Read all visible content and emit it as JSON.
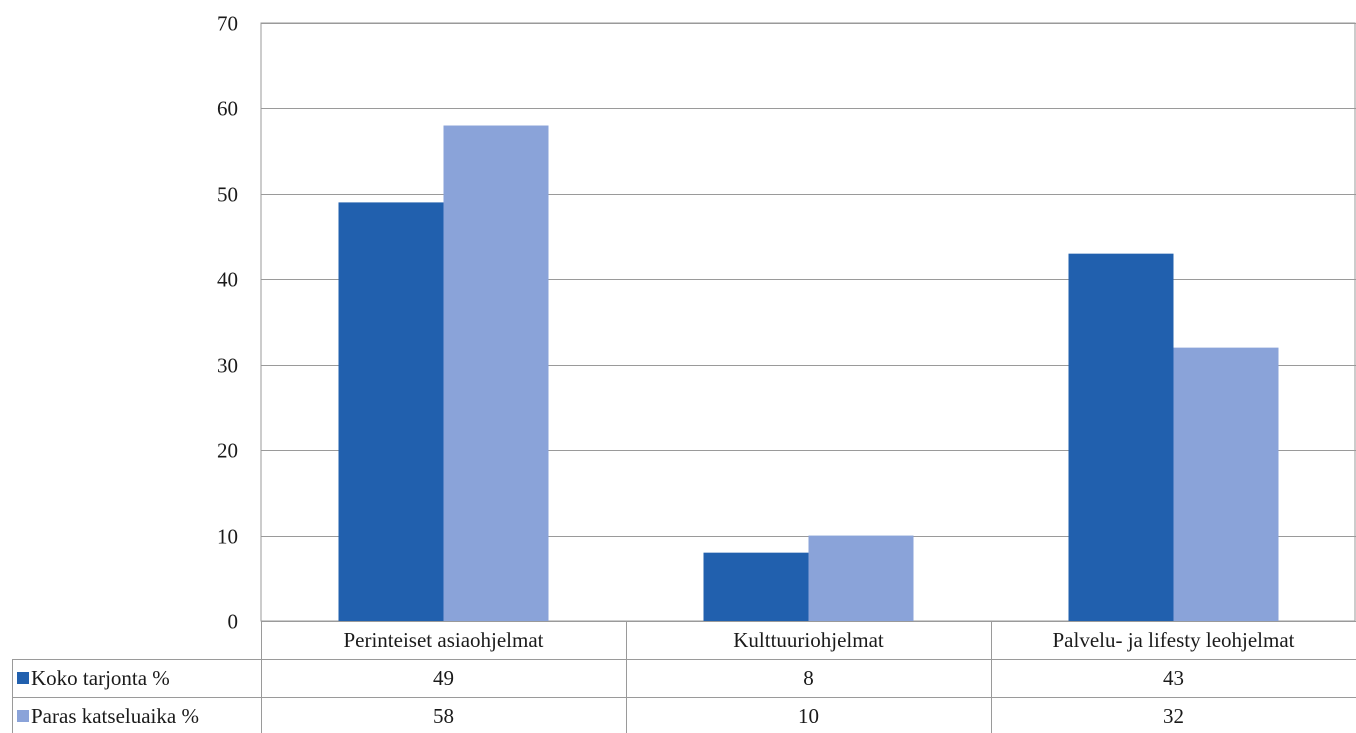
{
  "chart_data": {
    "type": "bar",
    "title": "",
    "xlabel": "",
    "ylabel": "",
    "categories": [
      "Perinteiset asiaohjelmat",
      "Kulttuuriohjelmat",
      "Palvelu- ja lifesty leohjelmat"
    ],
    "series": [
      {
        "name": "Koko tarjonta %",
        "values": [
          49,
          8,
          43
        ],
        "display_values": [
          "49",
          "8",
          "43"
        ],
        "color": "#2160ae"
      },
      {
        "name": "Paras katseluaika %",
        "values": [
          58,
          10,
          32
        ],
        "display_values": [
          "58",
          "10",
          "32"
        ],
        "color": "#8aa3d9"
      }
    ],
    "ylim": [
      0,
      70
    ],
    "yticks": [
      0,
      10,
      20,
      30,
      40,
      50,
      60,
      70
    ],
    "grid": true,
    "legend": "data table (left column)",
    "data_table": true
  }
}
